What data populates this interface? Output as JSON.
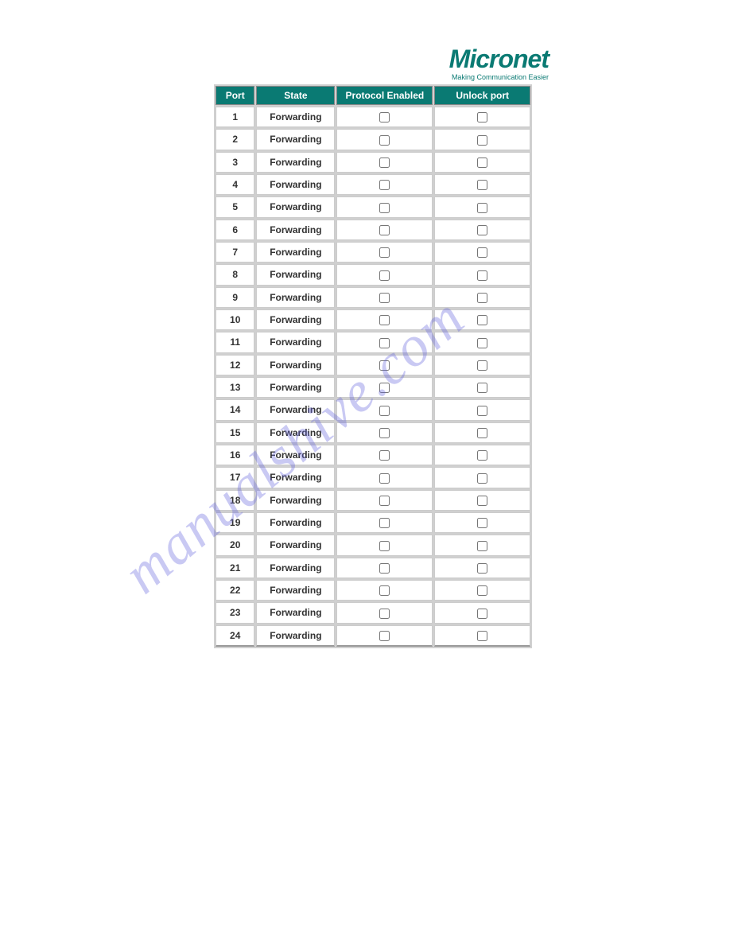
{
  "logo": {
    "brand": "Micronet",
    "tagline": "Making Communication Easier"
  },
  "watermark": {
    "text": "manualshive.com"
  },
  "table": {
    "columns": [
      {
        "key": "port",
        "label": "Port"
      },
      {
        "key": "state",
        "label": "State"
      },
      {
        "key": "protocol_enabled",
        "label": "Protocol Enabled"
      },
      {
        "key": "unlock_port",
        "label": "Unlock port"
      }
    ],
    "header_background": "#0a7a73",
    "header_color": "#ffffff",
    "cell_background": "#ffffff",
    "rows": [
      {
        "port": "1",
        "state": "Forwarding",
        "protocol_enabled": false,
        "unlock_port": false
      },
      {
        "port": "2",
        "state": "Forwarding",
        "protocol_enabled": false,
        "unlock_port": false
      },
      {
        "port": "3",
        "state": "Forwarding",
        "protocol_enabled": false,
        "unlock_port": false
      },
      {
        "port": "4",
        "state": "Forwarding",
        "protocol_enabled": false,
        "unlock_port": false
      },
      {
        "port": "5",
        "state": "Forwarding",
        "protocol_enabled": false,
        "unlock_port": false
      },
      {
        "port": "6",
        "state": "Forwarding",
        "protocol_enabled": false,
        "unlock_port": false
      },
      {
        "port": "7",
        "state": "Forwarding",
        "protocol_enabled": false,
        "unlock_port": false
      },
      {
        "port": "8",
        "state": "Forwarding",
        "protocol_enabled": false,
        "unlock_port": false
      },
      {
        "port": "9",
        "state": "Forwarding",
        "protocol_enabled": false,
        "unlock_port": false
      },
      {
        "port": "10",
        "state": "Forwarding",
        "protocol_enabled": false,
        "unlock_port": false
      },
      {
        "port": "11",
        "state": "Forwarding",
        "protocol_enabled": false,
        "unlock_port": false
      },
      {
        "port": "12",
        "state": "Forwarding",
        "protocol_enabled": false,
        "unlock_port": false
      },
      {
        "port": "13",
        "state": "Forwarding",
        "protocol_enabled": false,
        "unlock_port": false
      },
      {
        "port": "14",
        "state": "Forwarding",
        "protocol_enabled": false,
        "unlock_port": false
      },
      {
        "port": "15",
        "state": "Forwarding",
        "protocol_enabled": false,
        "unlock_port": false
      },
      {
        "port": "16",
        "state": "Forwarding",
        "protocol_enabled": false,
        "unlock_port": false
      },
      {
        "port": "17",
        "state": "Forwarding",
        "protocol_enabled": false,
        "unlock_port": false
      },
      {
        "port": "18",
        "state": "Forwarding",
        "protocol_enabled": false,
        "unlock_port": false
      },
      {
        "port": "19",
        "state": "Forwarding",
        "protocol_enabled": false,
        "unlock_port": false
      },
      {
        "port": "20",
        "state": "Forwarding",
        "protocol_enabled": false,
        "unlock_port": false
      },
      {
        "port": "21",
        "state": "Forwarding",
        "protocol_enabled": false,
        "unlock_port": false
      },
      {
        "port": "22",
        "state": "Forwarding",
        "protocol_enabled": false,
        "unlock_port": false
      },
      {
        "port": "23",
        "state": "Forwarding",
        "protocol_enabled": false,
        "unlock_port": false
      },
      {
        "port": "24",
        "state": "Forwarding",
        "protocol_enabled": false,
        "unlock_port": false
      }
    ]
  }
}
